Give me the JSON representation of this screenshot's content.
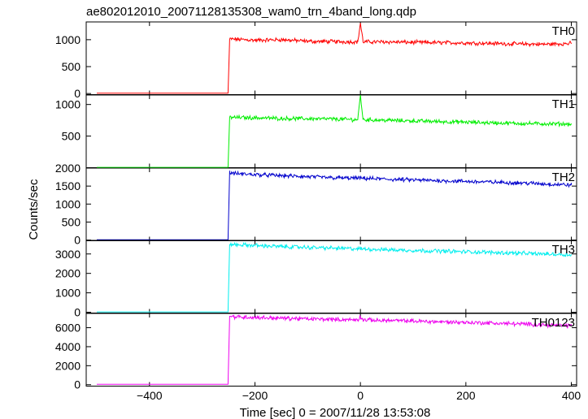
{
  "title": "ae802012010_20071128135308_wam0_trn_4band_long.qdp",
  "ylabel": "Counts/sec",
  "xlabel": "Time [sec] 0 = 2007/11/28 13:53:08",
  "x_ticks": [
    "−400",
    "−200",
    "0",
    "200",
    "400"
  ],
  "chart_data": [
    {
      "type": "line",
      "name": "TH0",
      "color": "#ff0000",
      "xlim": [
        -520,
        410
      ],
      "ylim": [
        -20,
        1330
      ],
      "yticks": [
        0,
        500,
        1000
      ],
      "x": [
        -500,
        -255,
        -251,
        -248,
        -240,
        -200,
        -150,
        -100,
        -50,
        -5,
        0,
        5,
        50,
        100,
        150,
        200,
        250,
        300,
        350,
        400
      ],
      "y": [
        5,
        5,
        5,
        1010,
        1010,
        990,
        1000,
        970,
        965,
        960,
        1310,
        960,
        960,
        950,
        945,
        940,
        930,
        920,
        915,
        930
      ]
    },
    {
      "type": "line",
      "name": "TH1",
      "color": "#00ee00",
      "xlim": [
        -520,
        410
      ],
      "ylim": [
        0,
        1150
      ],
      "yticks": [
        500,
        1000
      ],
      "x": [
        -500,
        -255,
        -251,
        -248,
        -240,
        -200,
        -150,
        -100,
        -50,
        -5,
        0,
        5,
        50,
        100,
        150,
        200,
        250,
        300,
        350,
        400
      ],
      "y": [
        5,
        5,
        5,
        800,
        795,
        790,
        780,
        775,
        770,
        760,
        1150,
        760,
        750,
        740,
        730,
        720,
        710,
        700,
        695,
        690
      ]
    },
    {
      "type": "line",
      "name": "TH2",
      "color": "#0000cc",
      "xlim": [
        -520,
        410
      ],
      "ylim": [
        -20,
        2000
      ],
      "yticks": [
        0,
        500,
        1000,
        1500,
        2000
      ],
      "x": [
        -500,
        -255,
        -251,
        -248,
        -240,
        -200,
        -150,
        -100,
        -50,
        0,
        50,
        100,
        150,
        200,
        250,
        300,
        350,
        400
      ],
      "y": [
        10,
        10,
        10,
        1880,
        1850,
        1820,
        1790,
        1760,
        1730,
        1720,
        1690,
        1670,
        1650,
        1630,
        1610,
        1590,
        1560,
        1530
      ]
    },
    {
      "type": "line",
      "name": "TH3",
      "color": "#00eeee",
      "xlim": [
        -520,
        410
      ],
      "ylim": [
        -40,
        3700
      ],
      "yticks": [
        0,
        1000,
        2000,
        3000
      ],
      "x": [
        -500,
        -255,
        -251,
        -248,
        -240,
        -200,
        -150,
        -100,
        -50,
        0,
        50,
        100,
        150,
        200,
        250,
        300,
        350,
        400
      ],
      "y": [
        20,
        20,
        20,
        3500,
        3480,
        3440,
        3380,
        3340,
        3300,
        3260,
        3220,
        3180,
        3150,
        3110,
        3080,
        3040,
        3000,
        2960
      ]
    },
    {
      "type": "line",
      "name": "TH0123",
      "color": "#ee00ee",
      "xlim": [
        -520,
        410
      ],
      "ylim": [
        -150,
        7500
      ],
      "yticks": [
        0,
        2000,
        4000,
        6000
      ],
      "x": [
        -500,
        -255,
        -251,
        -248,
        -240,
        -200,
        -150,
        -100,
        -50,
        -5,
        0,
        5,
        50,
        100,
        150,
        200,
        250,
        300,
        350,
        400
      ],
      "y": [
        40,
        40,
        40,
        7200,
        7150,
        7080,
        7000,
        6930,
        6870,
        6820,
        7150,
        6820,
        6760,
        6700,
        6620,
        6560,
        6480,
        6400,
        6300,
        6200
      ]
    }
  ]
}
